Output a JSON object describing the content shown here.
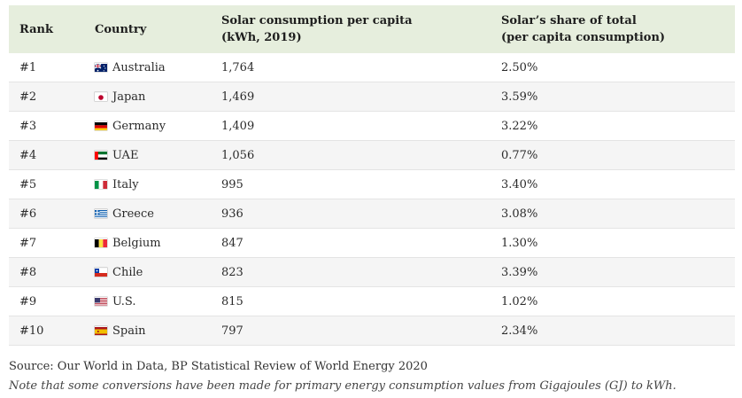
{
  "table": {
    "headers": {
      "rank": "Rank",
      "country": "Country",
      "consumption_line1": "Solar consumption per capita",
      "consumption_line2": "(kWh, 2019)",
      "share_line1": "Solar’s share of total",
      "share_line2": "(per capita consumption)"
    },
    "rows": [
      {
        "rank": "#1",
        "country": "Australia",
        "flag": "australia-flag-icon",
        "consumption": "1,764",
        "share": "2.50%"
      },
      {
        "rank": "#2",
        "country": "Japan",
        "flag": "japan-flag-icon",
        "consumption": "1,469",
        "share": "3.59%"
      },
      {
        "rank": "#3",
        "country": "Germany",
        "flag": "germany-flag-icon",
        "consumption": "1,409",
        "share": "3.22%"
      },
      {
        "rank": "#4",
        "country": "UAE",
        "flag": "uae-flag-icon",
        "consumption": "1,056",
        "share": "0.77%"
      },
      {
        "rank": "#5",
        "country": "Italy",
        "flag": "italy-flag-icon",
        "consumption": "995",
        "share": "3.40%"
      },
      {
        "rank": "#6",
        "country": "Greece",
        "flag": "greece-flag-icon",
        "consumption": "936",
        "share": "3.08%"
      },
      {
        "rank": "#7",
        "country": "Belgium",
        "flag": "belgium-flag-icon",
        "consumption": "847",
        "share": "1.30%"
      },
      {
        "rank": "#8",
        "country": "Chile",
        "flag": "chile-flag-icon",
        "consumption": "823",
        "share": "3.39%"
      },
      {
        "rank": "#9",
        "country": "U.S.",
        "flag": "us-flag-icon",
        "consumption": "815",
        "share": "1.02%"
      },
      {
        "rank": "#10",
        "country": "Spain",
        "flag": "spain-flag-icon",
        "consumption": "797",
        "share": "2.34%"
      }
    ]
  },
  "source": "Source: Our World in Data, BP Statistical Review of World Energy 2020",
  "footnote": "Note that some conversions have been made for primary energy consumption values from Gigajoules (GJ) to kWh.",
  "colors": {
    "header_bg": "#e6eedd",
    "stripe_bg": "#f5f5f5",
    "row_border": "#e4e4e4"
  }
}
